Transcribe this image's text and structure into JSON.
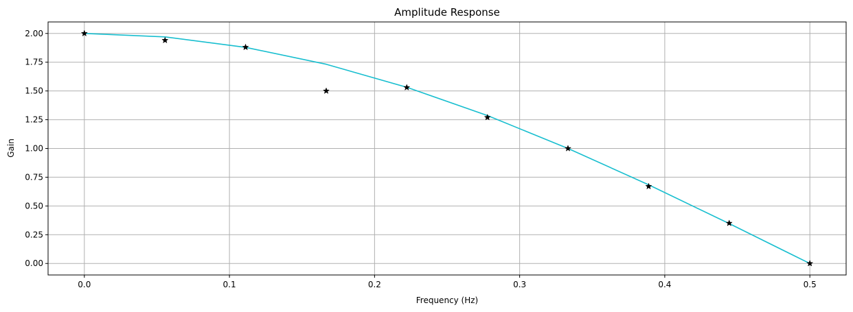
{
  "chart_data": {
    "type": "line",
    "title": "Amplitude Response",
    "xlabel": "Frequency (Hz)",
    "ylabel": "Gain",
    "xlim": [
      -0.025,
      0.525
    ],
    "ylim": [
      -0.1,
      2.1
    ],
    "xticks": [
      0.0,
      0.1,
      0.2,
      0.3,
      0.4,
      0.5
    ],
    "xtick_labels": [
      "0.0",
      "0.1",
      "0.2",
      "0.3",
      "0.4",
      "0.5"
    ],
    "yticks": [
      0.0,
      0.25,
      0.5,
      0.75,
      1.0,
      1.25,
      1.5,
      1.75,
      2.0
    ],
    "ytick_labels": [
      "0.00",
      "0.25",
      "0.50",
      "0.75",
      "1.00",
      "1.25",
      "1.50",
      "1.75",
      "2.00"
    ],
    "grid": true,
    "series": [
      {
        "style": "line",
        "color": "#17becf",
        "x": [
          0.0,
          0.0556,
          0.1111,
          0.1667,
          0.2222,
          0.2778,
          0.3333,
          0.3889,
          0.4444,
          0.5
        ],
        "y": [
          2.0,
          1.97,
          1.879,
          1.732,
          1.532,
          1.286,
          1.0,
          0.684,
          0.347,
          0.0
        ]
      },
      {
        "style": "markers",
        "marker": "star",
        "color": "#000000",
        "x": [
          0.0,
          0.0556,
          0.1111,
          0.1667,
          0.2222,
          0.2778,
          0.3333,
          0.3889,
          0.4444,
          0.5
        ],
        "y": [
          2.0,
          1.94,
          1.88,
          1.5,
          1.53,
          1.27,
          1.0,
          0.67,
          0.35,
          0.0
        ]
      }
    ]
  }
}
